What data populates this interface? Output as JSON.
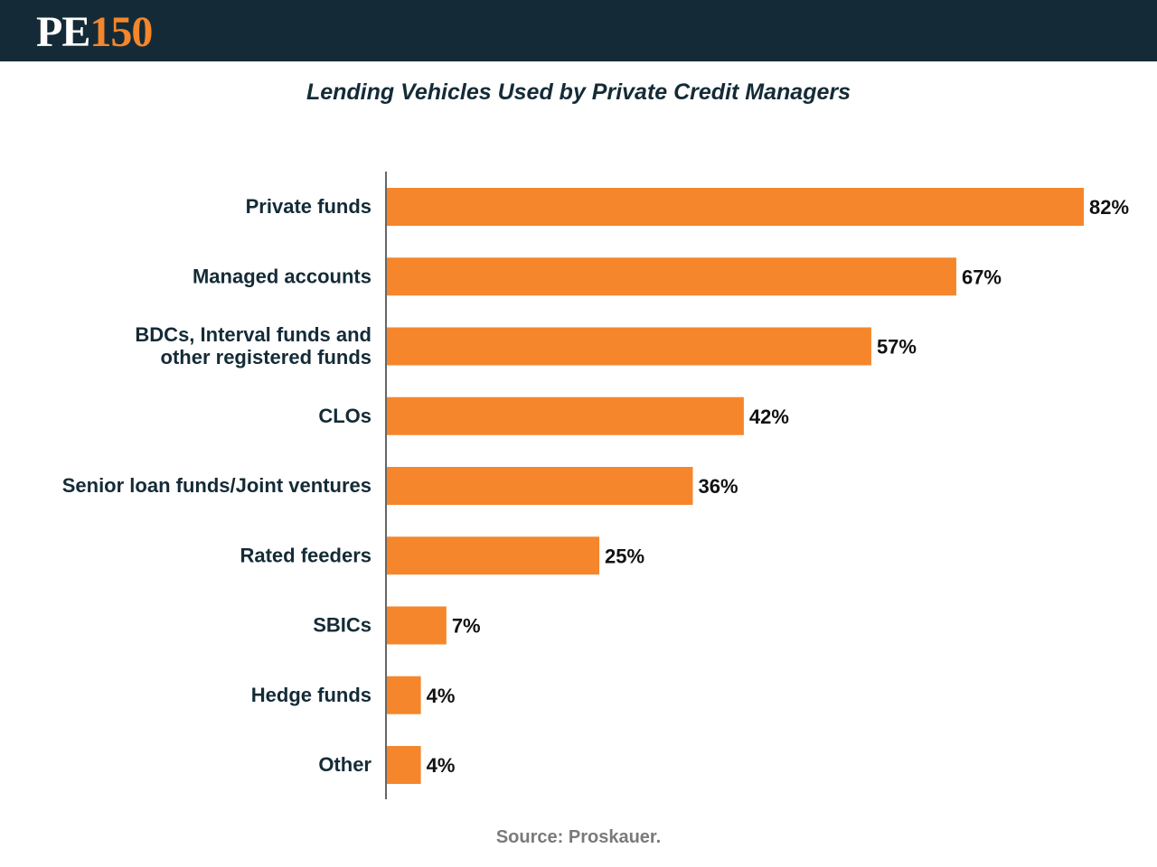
{
  "header": {
    "logo_pe": "PE",
    "logo_num": "150"
  },
  "colors": {
    "header_bg": "#142b37",
    "accent": "#f5862b",
    "bar": "#f5862b",
    "text_dark": "#142b37",
    "source_text": "#7a7a7a"
  },
  "chart_data": {
    "type": "bar",
    "orientation": "horizontal",
    "title": "Lending Vehicles Used by Private Credit Managers",
    "categories": [
      [
        "Private funds"
      ],
      [
        "Managed accounts"
      ],
      [
        "BDCs, Interval funds and",
        "other registered funds"
      ],
      [
        "CLOs"
      ],
      [
        "Senior loan funds/Joint ventures"
      ],
      [
        "Rated feeders"
      ],
      [
        "SBICs"
      ],
      [
        "Hedge funds"
      ],
      [
        "Other"
      ]
    ],
    "values": [
      82,
      67,
      57,
      42,
      36,
      25,
      7,
      4,
      4
    ],
    "value_labels": [
      "82%",
      "67%",
      "57%",
      "42%",
      "36%",
      "25%",
      "7%",
      "4%",
      "4%"
    ],
    "xlim": [
      0,
      100
    ],
    "grid": false,
    "legend": "none"
  },
  "source": "Source: Proskauer."
}
